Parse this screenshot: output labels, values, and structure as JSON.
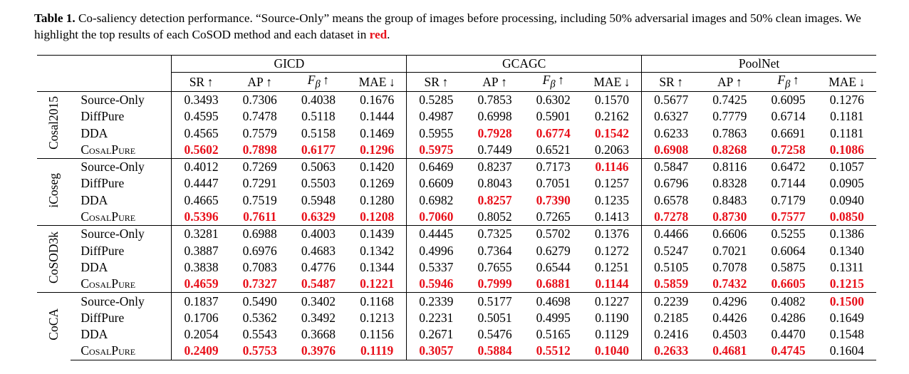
{
  "caption": {
    "label": "Table 1.",
    "text": "Co-saliency detection performance. “Source-Only” means the group of images before processing, including 50% adversarial images and 50% clean images. We highlight the top results of each CoSOD method and each dataset in ",
    "highlight": "red",
    "end": "."
  },
  "table": {
    "methods": [
      "GICD",
      "GCAGC",
      "PoolNet"
    ],
    "metrics": [
      {
        "name": "SR",
        "arrow": "↑"
      },
      {
        "name": "AP",
        "arrow": "↑"
      },
      {
        "name": "F",
        "sub": "β",
        "arrow": "↑"
      },
      {
        "name": "MAE",
        "arrow": "↓"
      }
    ],
    "groups": [
      {
        "dataset": "Cosal2015",
        "rows": [
          {
            "name": "Source-Only",
            "values": [
              "0.3493",
              "0.7306",
              "0.4038",
              "0.1676",
              "0.5285",
              "0.7853",
              "0.6302",
              "0.1570",
              "0.5677",
              "0.7425",
              "0.6095",
              "0.1276"
            ],
            "highlight": []
          },
          {
            "name": "DiffPure",
            "values": [
              "0.4595",
              "0.7478",
              "0.5118",
              "0.1444",
              "0.4987",
              "0.6998",
              "0.5901",
              "0.2162",
              "0.6327",
              "0.7779",
              "0.6714",
              "0.1181"
            ],
            "highlight": []
          },
          {
            "name": "DDA",
            "values": [
              "0.4565",
              "0.7579",
              "0.5158",
              "0.1469",
              "0.5955",
              "0.7928",
              "0.6774",
              "0.1542",
              "0.6233",
              "0.7863",
              "0.6691",
              "0.1181"
            ],
            "highlight": [
              5,
              6,
              7
            ]
          },
          {
            "name": "CosalPure",
            "values": [
              "0.5602",
              "0.7898",
              "0.6177",
              "0.1296",
              "0.5975",
              "0.7449",
              "0.6521",
              "0.2063",
              "0.6908",
              "0.8268",
              "0.7258",
              "0.1086"
            ],
            "highlight": [
              0,
              1,
              2,
              3,
              4,
              8,
              9,
              10,
              11
            ]
          }
        ]
      },
      {
        "dataset": "iCoseg",
        "rows": [
          {
            "name": "Source-Only",
            "values": [
              "0.4012",
              "0.7269",
              "0.5063",
              "0.1420",
              "0.6469",
              "0.8237",
              "0.7173",
              "0.1146",
              "0.5847",
              "0.8116",
              "0.6472",
              "0.1057"
            ],
            "highlight": [
              7
            ]
          },
          {
            "name": "DiffPure",
            "values": [
              "0.4447",
              "0.7291",
              "0.5503",
              "0.1269",
              "0.6609",
              "0.8043",
              "0.7051",
              "0.1257",
              "0.6796",
              "0.8328",
              "0.7144",
              "0.0905"
            ],
            "highlight": []
          },
          {
            "name": "DDA",
            "values": [
              "0.4665",
              "0.7519",
              "0.5948",
              "0.1280",
              "0.6982",
              "0.8257",
              "0.7390",
              "0.1235",
              "0.6578",
              "0.8483",
              "0.7179",
              "0.0940"
            ],
            "highlight": [
              5,
              6
            ]
          },
          {
            "name": "CosalPure",
            "values": [
              "0.5396",
              "0.7611",
              "0.6329",
              "0.1208",
              "0.7060",
              "0.8052",
              "0.7265",
              "0.1413",
              "0.7278",
              "0.8730",
              "0.7577",
              "0.0850"
            ],
            "highlight": [
              0,
              1,
              2,
              3,
              4,
              8,
              9,
              10,
              11
            ]
          }
        ]
      },
      {
        "dataset": "CoSOD3k",
        "rows": [
          {
            "name": "Source-Only",
            "values": [
              "0.3281",
              "0.6988",
              "0.4003",
              "0.1439",
              "0.4445",
              "0.7325",
              "0.5702",
              "0.1376",
              "0.4466",
              "0.6606",
              "0.5255",
              "0.1386"
            ],
            "highlight": []
          },
          {
            "name": "DiffPure",
            "values": [
              "0.3887",
              "0.6976",
              "0.4683",
              "0.1342",
              "0.4996",
              "0.7364",
              "0.6279",
              "0.1272",
              "0.5247",
              "0.7021",
              "0.6064",
              "0.1340"
            ],
            "highlight": []
          },
          {
            "name": "DDA",
            "values": [
              "0.3838",
              "0.7083",
              "0.4776",
              "0.1344",
              "0.5337",
              "0.7655",
              "0.6544",
              "0.1251",
              "0.5105",
              "0.7078",
              "0.5875",
              "0.1311"
            ],
            "highlight": []
          },
          {
            "name": "CosalPure",
            "values": [
              "0.4659",
              "0.7327",
              "0.5487",
              "0.1221",
              "0.5946",
              "0.7999",
              "0.6881",
              "0.1144",
              "0.5859",
              "0.7432",
              "0.6605",
              "0.1215"
            ],
            "highlight": [
              0,
              1,
              2,
              3,
              4,
              5,
              6,
              7,
              8,
              9,
              10,
              11
            ]
          }
        ]
      },
      {
        "dataset": "CoCA",
        "rows": [
          {
            "name": "Source-Only",
            "values": [
              "0.1837",
              "0.5490",
              "0.3402",
              "0.1168",
              "0.2339",
              "0.5177",
              "0.4698",
              "0.1227",
              "0.2239",
              "0.4296",
              "0.4082",
              "0.1500"
            ],
            "highlight": [
              11
            ]
          },
          {
            "name": "DiffPure",
            "values": [
              "0.1706",
              "0.5362",
              "0.3492",
              "0.1213",
              "0.2231",
              "0.5051",
              "0.4995",
              "0.1190",
              "0.2185",
              "0.4426",
              "0.4286",
              "0.1649"
            ],
            "highlight": []
          },
          {
            "name": "DDA",
            "values": [
              "0.2054",
              "0.5543",
              "0.3668",
              "0.1156",
              "0.2671",
              "0.5476",
              "0.5165",
              "0.1129",
              "0.2416",
              "0.4503",
              "0.4470",
              "0.1548"
            ],
            "highlight": []
          },
          {
            "name": "CosalPure",
            "values": [
              "0.2409",
              "0.5753",
              "0.3976",
              "0.1119",
              "0.3057",
              "0.5884",
              "0.5512",
              "0.1040",
              "0.2633",
              "0.4681",
              "0.4745",
              "0.1604"
            ],
            "highlight": [
              0,
              1,
              2,
              3,
              4,
              5,
              6,
              7,
              8,
              9,
              10
            ]
          }
        ]
      }
    ]
  }
}
